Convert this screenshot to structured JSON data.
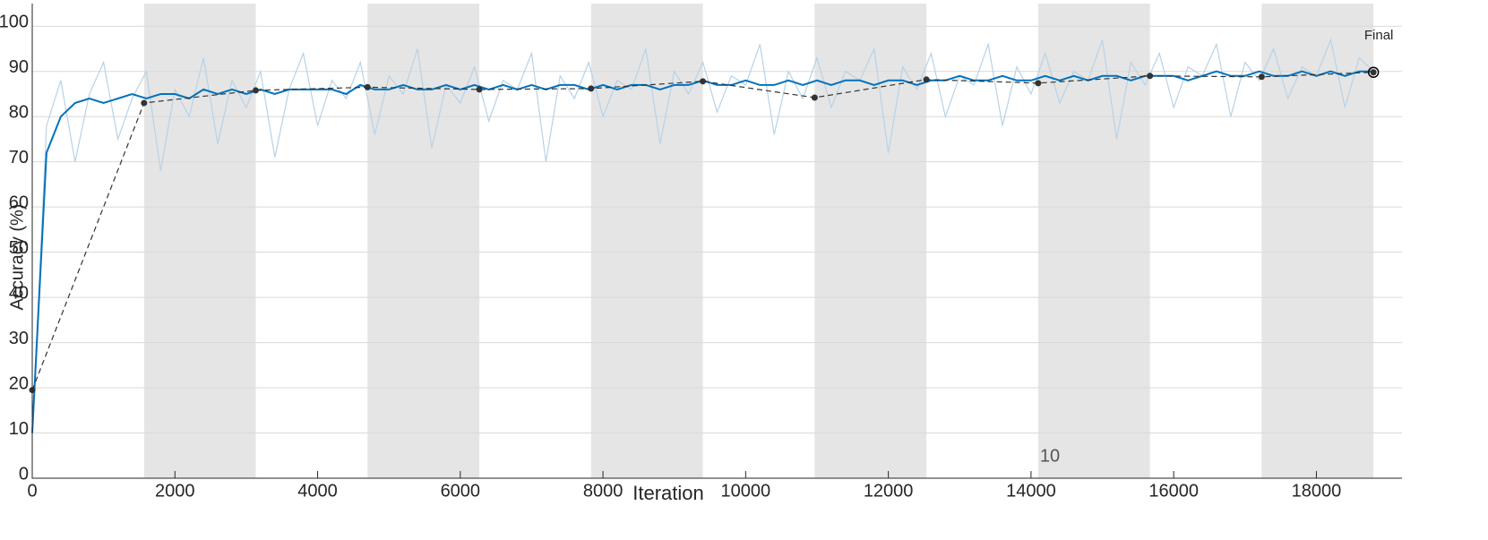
{
  "chart_data": {
    "type": "line",
    "x_label": "Iteration",
    "y_label": "Accuracy (%)",
    "annotations": [
      "Final",
      "10"
    ],
    "xlim": [
      0,
      19200
    ],
    "xticks": [
      0,
      2000,
      4000,
      6000,
      8000,
      10000,
      12000,
      14000,
      16000,
      18000
    ],
    "ylim": [
      0,
      105
    ],
    "yticks": [
      0,
      10,
      20,
      30,
      40,
      50,
      60,
      70,
      80,
      90,
      100
    ],
    "grid": true,
    "shaded_regions": [
      [
        1567,
        3133
      ],
      [
        4700,
        6267
      ],
      [
        7833,
        9400
      ],
      [
        10967,
        12533
      ],
      [
        14100,
        15667
      ],
      [
        17233,
        18800
      ]
    ],
    "shade_color": "#e5e5e5",
    "x": [
      0,
      200,
      400,
      600,
      800,
      1000,
      1200,
      1400,
      1600,
      1800,
      2000,
      2200,
      2400,
      2600,
      2800,
      3000,
      3200,
      3400,
      3600,
      3800,
      4000,
      4200,
      4400,
      4600,
      4800,
      5000,
      5200,
      5400,
      5600,
      5800,
      6000,
      6200,
      6400,
      6600,
      6800,
      7000,
      7200,
      7400,
      7600,
      7800,
      8000,
      8200,
      8400,
      8600,
      8800,
      9000,
      9200,
      9400,
      9600,
      9800,
      10000,
      10200,
      10400,
      10600,
      10800,
      11000,
      11200,
      11400,
      11600,
      11800,
      12000,
      12200,
      12400,
      12600,
      12800,
      13000,
      13200,
      13400,
      13600,
      13800,
      14000,
      14200,
      14400,
      14600,
      14800,
      15000,
      15200,
      15400,
      15600,
      15800,
      16000,
      16200,
      16400,
      16600,
      16800,
      17000,
      17200,
      17400,
      17600,
      17800,
      18000,
      18200,
      18400,
      18600,
      18800
    ],
    "series": [
      {
        "color": "#b8d2e6",
        "width": 1.2,
        "values": [
          10,
          78,
          88,
          70,
          85,
          92,
          75,
          84,
          90,
          68,
          86,
          80,
          93,
          74,
          88,
          82,
          90,
          71,
          86,
          94,
          78,
          88,
          84,
          92,
          76,
          89,
          85,
          95,
          73,
          87,
          83,
          91,
          79,
          88,
          86,
          94,
          70,
          89,
          84,
          92,
          80,
          88,
          86,
          95,
          74,
          90,
          85,
          92,
          81,
          89,
          87,
          96,
          76,
          90,
          84,
          93,
          82,
          90,
          88,
          95,
          72,
          91,
          86,
          94,
          80,
          89,
          87,
          96,
          78,
          91,
          85,
          94,
          83,
          90,
          88,
          97,
          75,
          92,
          87,
          94,
          82,
          91,
          89,
          96,
          80,
          92,
          88,
          95,
          84,
          91,
          89,
          97,
          82,
          93,
          90
        ]
      },
      {
        "color": "#0072bd",
        "width": 2,
        "values": [
          10,
          72,
          80,
          83,
          84,
          83,
          84,
          85,
          84,
          85,
          85,
          84,
          86,
          85,
          86,
          85,
          86,
          85,
          86,
          86,
          86,
          86,
          85,
          87,
          86,
          86,
          87,
          86,
          86,
          87,
          86,
          87,
          86,
          87,
          86,
          87,
          86,
          87,
          87,
          86,
          87,
          86,
          87,
          87,
          86,
          87,
          87,
          88,
          87,
          87,
          88,
          87,
          87,
          88,
          87,
          88,
          87,
          88,
          88,
          87,
          88,
          88,
          87,
          88,
          88,
          89,
          88,
          88,
          89,
          88,
          88,
          89,
          88,
          89,
          88,
          89,
          89,
          88,
          89,
          89,
          89,
          88,
          89,
          90,
          89,
          89,
          90,
          89,
          89,
          90,
          89,
          90,
          89,
          90,
          90
        ]
      },
      {
        "color": "#333333",
        "dashed": true,
        "x": [
          0,
          1567,
          3133,
          4700,
          6267,
          7833,
          9400,
          10967,
          12533,
          14100,
          15667,
          17233,
          18800
        ],
        "values": [
          19.5,
          83,
          85.8,
          86.5,
          86,
          86.2,
          87.8,
          84.2,
          88.2,
          87.4,
          89,
          88.8,
          89.8
        ]
      }
    ]
  }
}
